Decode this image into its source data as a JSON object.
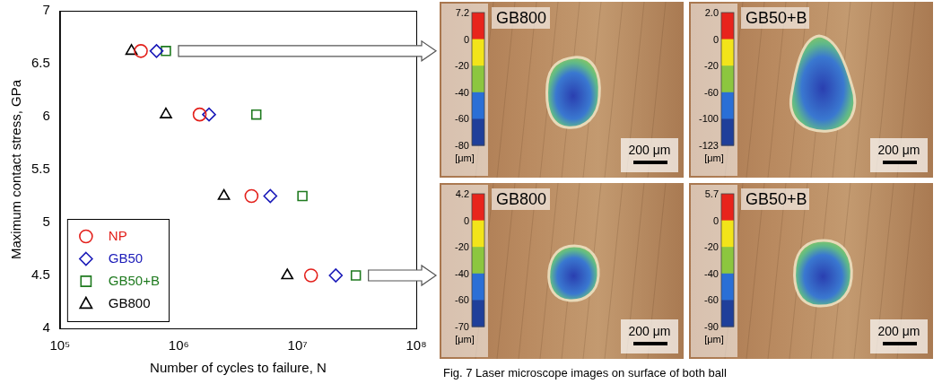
{
  "chart_data": {
    "type": "scatter",
    "x_label": "Number of cycles to failure, N",
    "y_label": "Maximum contact stress, GPa",
    "log": "x",
    "xlim": [
      100000,
      100000000
    ],
    "xticks": [
      {
        "value": 100000,
        "label": "10⁵"
      },
      {
        "value": 1000000,
        "label": "10⁶"
      },
      {
        "value": 10000000,
        "label": "10⁷"
      },
      {
        "value": 100000000,
        "label": "10⁸"
      }
    ],
    "ylim": [
      4,
      7
    ],
    "yticks": [
      4,
      4.5,
      5,
      5.5,
      6,
      6.5,
      7
    ],
    "grid": false,
    "legend": "lower left",
    "series": [
      {
        "name": "NP",
        "color": "#e3201b",
        "marker": "circle",
        "x": [
          480000,
          1500000,
          4100000,
          13000000
        ],
        "values": [
          6.62,
          6.02,
          5.25,
          4.5
        ]
      },
      {
        "name": "GB50",
        "color": "#1a1ab8",
        "marker": "diamond",
        "x": [
          650000,
          1800000,
          5900000,
          21000000
        ],
        "values": [
          6.62,
          6.02,
          5.25,
          4.5
        ]
      },
      {
        "name": "GB50+B",
        "color": "#1f7a1f",
        "marker": "square",
        "x": [
          780000,
          4500000,
          11000000,
          31000000
        ],
        "values": [
          6.62,
          6.02,
          5.25,
          4.5
        ]
      },
      {
        "name": "GB800",
        "color": "#000000",
        "marker": "triangle",
        "x": [
          400000,
          780000,
          2400000,
          8200000
        ],
        "values": [
          6.62,
          6.02,
          5.25,
          4.5
        ]
      }
    ]
  },
  "images": [
    {
      "label": "GB800",
      "colorbar": {
        "ticks": [
          7.2,
          0,
          -20,
          -40,
          -60,
          -80
        ],
        "unit": "[μm]"
      },
      "scale_bar": "200 μm"
    },
    {
      "label": "GB50+B",
      "colorbar": {
        "ticks": [
          {
            "value": 2,
            "label": "2.0"
          },
          0,
          -20,
          -60,
          -100,
          -123
        ],
        "unit": "[μm]"
      },
      "scale_bar": "200 μm"
    },
    {
      "label": "GB800",
      "colorbar": {
        "ticks": [
          4.2,
          0,
          -20,
          -40,
          -60,
          -70
        ],
        "unit": "[μm]"
      },
      "scale_bar": "200 μm"
    },
    {
      "label": "GB50+B",
      "colorbar": {
        "ticks": [
          5.7,
          0,
          -20,
          -40,
          -60,
          -90
        ],
        "unit": "[μm]"
      },
      "scale_bar": "200 μm"
    }
  ],
  "caption": "Fig. 7 Laser microscope images on surface of both ball"
}
